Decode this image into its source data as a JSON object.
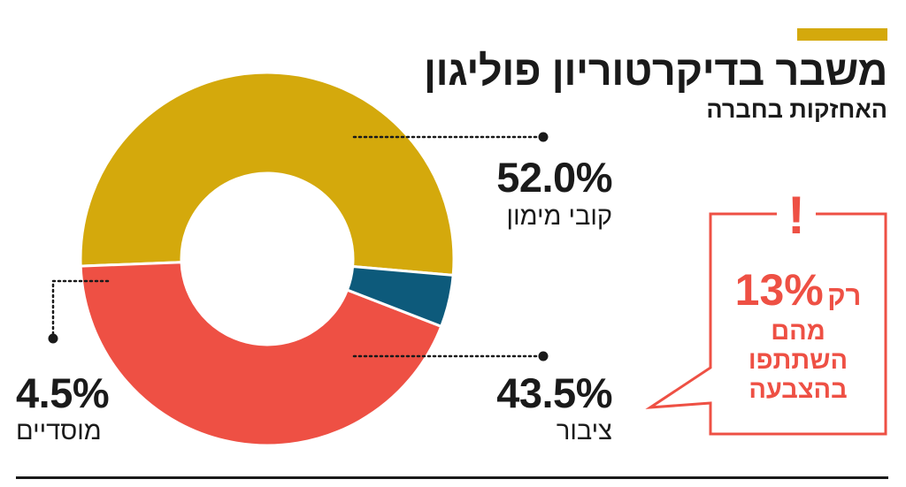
{
  "header": {
    "title": "משבר בדיקרטוריון פוליגון",
    "subtitle": "האחזקות בחברה"
  },
  "colors": {
    "accent": "#d4a90c",
    "red": "#ee5044",
    "blue": "#0d5a7b",
    "text": "#1a1a1a"
  },
  "chart_data": {
    "type": "pie",
    "title": "משבר בדיקרטוריון פוליגון",
    "subtitle": "האחזקות בחברה",
    "slices": [
      {
        "label": "קובי מימון",
        "value": 52.0,
        "display": "52.0%",
        "color": "#d4a90c"
      },
      {
        "label": "ציבור",
        "value": 43.5,
        "display": "43.5%",
        "color": "#ee5044"
      },
      {
        "label": "מוסדיים",
        "value": 4.5,
        "display": "4.5%",
        "color": "#0d5a7b"
      }
    ]
  },
  "callout": {
    "icon": "exclamation-icon",
    "exclamation": "!",
    "prefix": "רק",
    "percent": "13%",
    "line2": "מהם",
    "line3": "השתתפו",
    "line4": "בהצבעה"
  }
}
